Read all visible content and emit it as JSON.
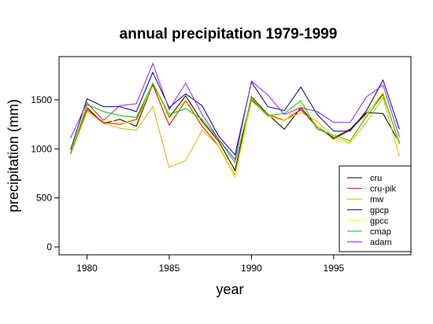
{
  "chart_data": {
    "type": "line",
    "title": "annual precipitation 1979-1999",
    "xlabel": "year",
    "ylabel": "precipitation (mm)",
    "x": [
      1979,
      1980,
      1981,
      1982,
      1983,
      1984,
      1985,
      1986,
      1987,
      1988,
      1989,
      1990,
      1991,
      1992,
      1993,
      1994,
      1995,
      1996,
      1997,
      1998,
      1999
    ],
    "xlim": [
      1978.3,
      1999.7
    ],
    "ylim": [
      -80,
      1940
    ],
    "x_ticks": [
      "1980",
      "1985",
      "1990",
      "1995"
    ],
    "y_ticks": [
      "0",
      "500",
      "1000",
      "1500"
    ],
    "grid": false,
    "legend_position": "bottom-right",
    "series": [
      {
        "name": "cru",
        "color": "#000000",
        "values": [
          960,
          1420,
          1260,
          1300,
          1230,
          1660,
          1320,
          1540,
          1280,
          1080,
          780,
          1530,
          1350,
          1200,
          1420,
          1230,
          1110,
          1200,
          1370,
          1360,
          1060
        ]
      },
      {
        "name": "cru-pik",
        "color": "#ff0000",
        "values": [
          950,
          1400,
          1270,
          1250,
          1300,
          1650,
          1240,
          1490,
          1230,
          1030,
          730,
          1500,
          1350,
          1290,
          1400,
          1220,
          1100,
          1190,
          1360,
          1560,
          1050
        ]
      },
      {
        "name": "mw",
        "color": "#e0b000",
        "values": [
          940,
          1380,
          1260,
          1210,
          1190,
          1430,
          810,
          880,
          1190,
          1030,
          710,
          1490,
          1330,
          1290,
          1370,
          1280,
          1120,
          1060,
          1270,
          1520,
          920
        ]
      },
      {
        "name": "gpcp",
        "color": "#000080",
        "values": [
          990,
          1510,
          1430,
          1430,
          1380,
          1780,
          1420,
          1560,
          1440,
          1130,
          940,
          1680,
          1430,
          1390,
          1630,
          1350,
          1180,
          1180,
          1390,
          1700,
          1200
        ]
      },
      {
        "name": "gpcc",
        "color": "#ffff00",
        "values": [
          960,
          1430,
          1300,
          1270,
          1260,
          1670,
          1310,
          1500,
          1250,
          1050,
          720,
          1520,
          1340,
          1280,
          1450,
          1230,
          1090,
          1050,
          1350,
          1580,
          1030
        ]
      },
      {
        "name": "cmap",
        "color": "#00cc00",
        "values": [
          950,
          1450,
          1380,
          1340,
          1320,
          1670,
          1350,
          1410,
          1300,
          1100,
          860,
          1510,
          1340,
          1360,
          1490,
          1200,
          1140,
          1080,
          1330,
          1550,
          1060
        ]
      },
      {
        "name": "adam",
        "color": "#a020f0",
        "values": [
          1110,
          1470,
          1290,
          1440,
          1460,
          1870,
          1400,
          1670,
          1350,
          1100,
          890,
          1690,
          1550,
          1350,
          1420,
          1380,
          1270,
          1270,
          1530,
          1650,
          1120
        ]
      }
    ]
  }
}
